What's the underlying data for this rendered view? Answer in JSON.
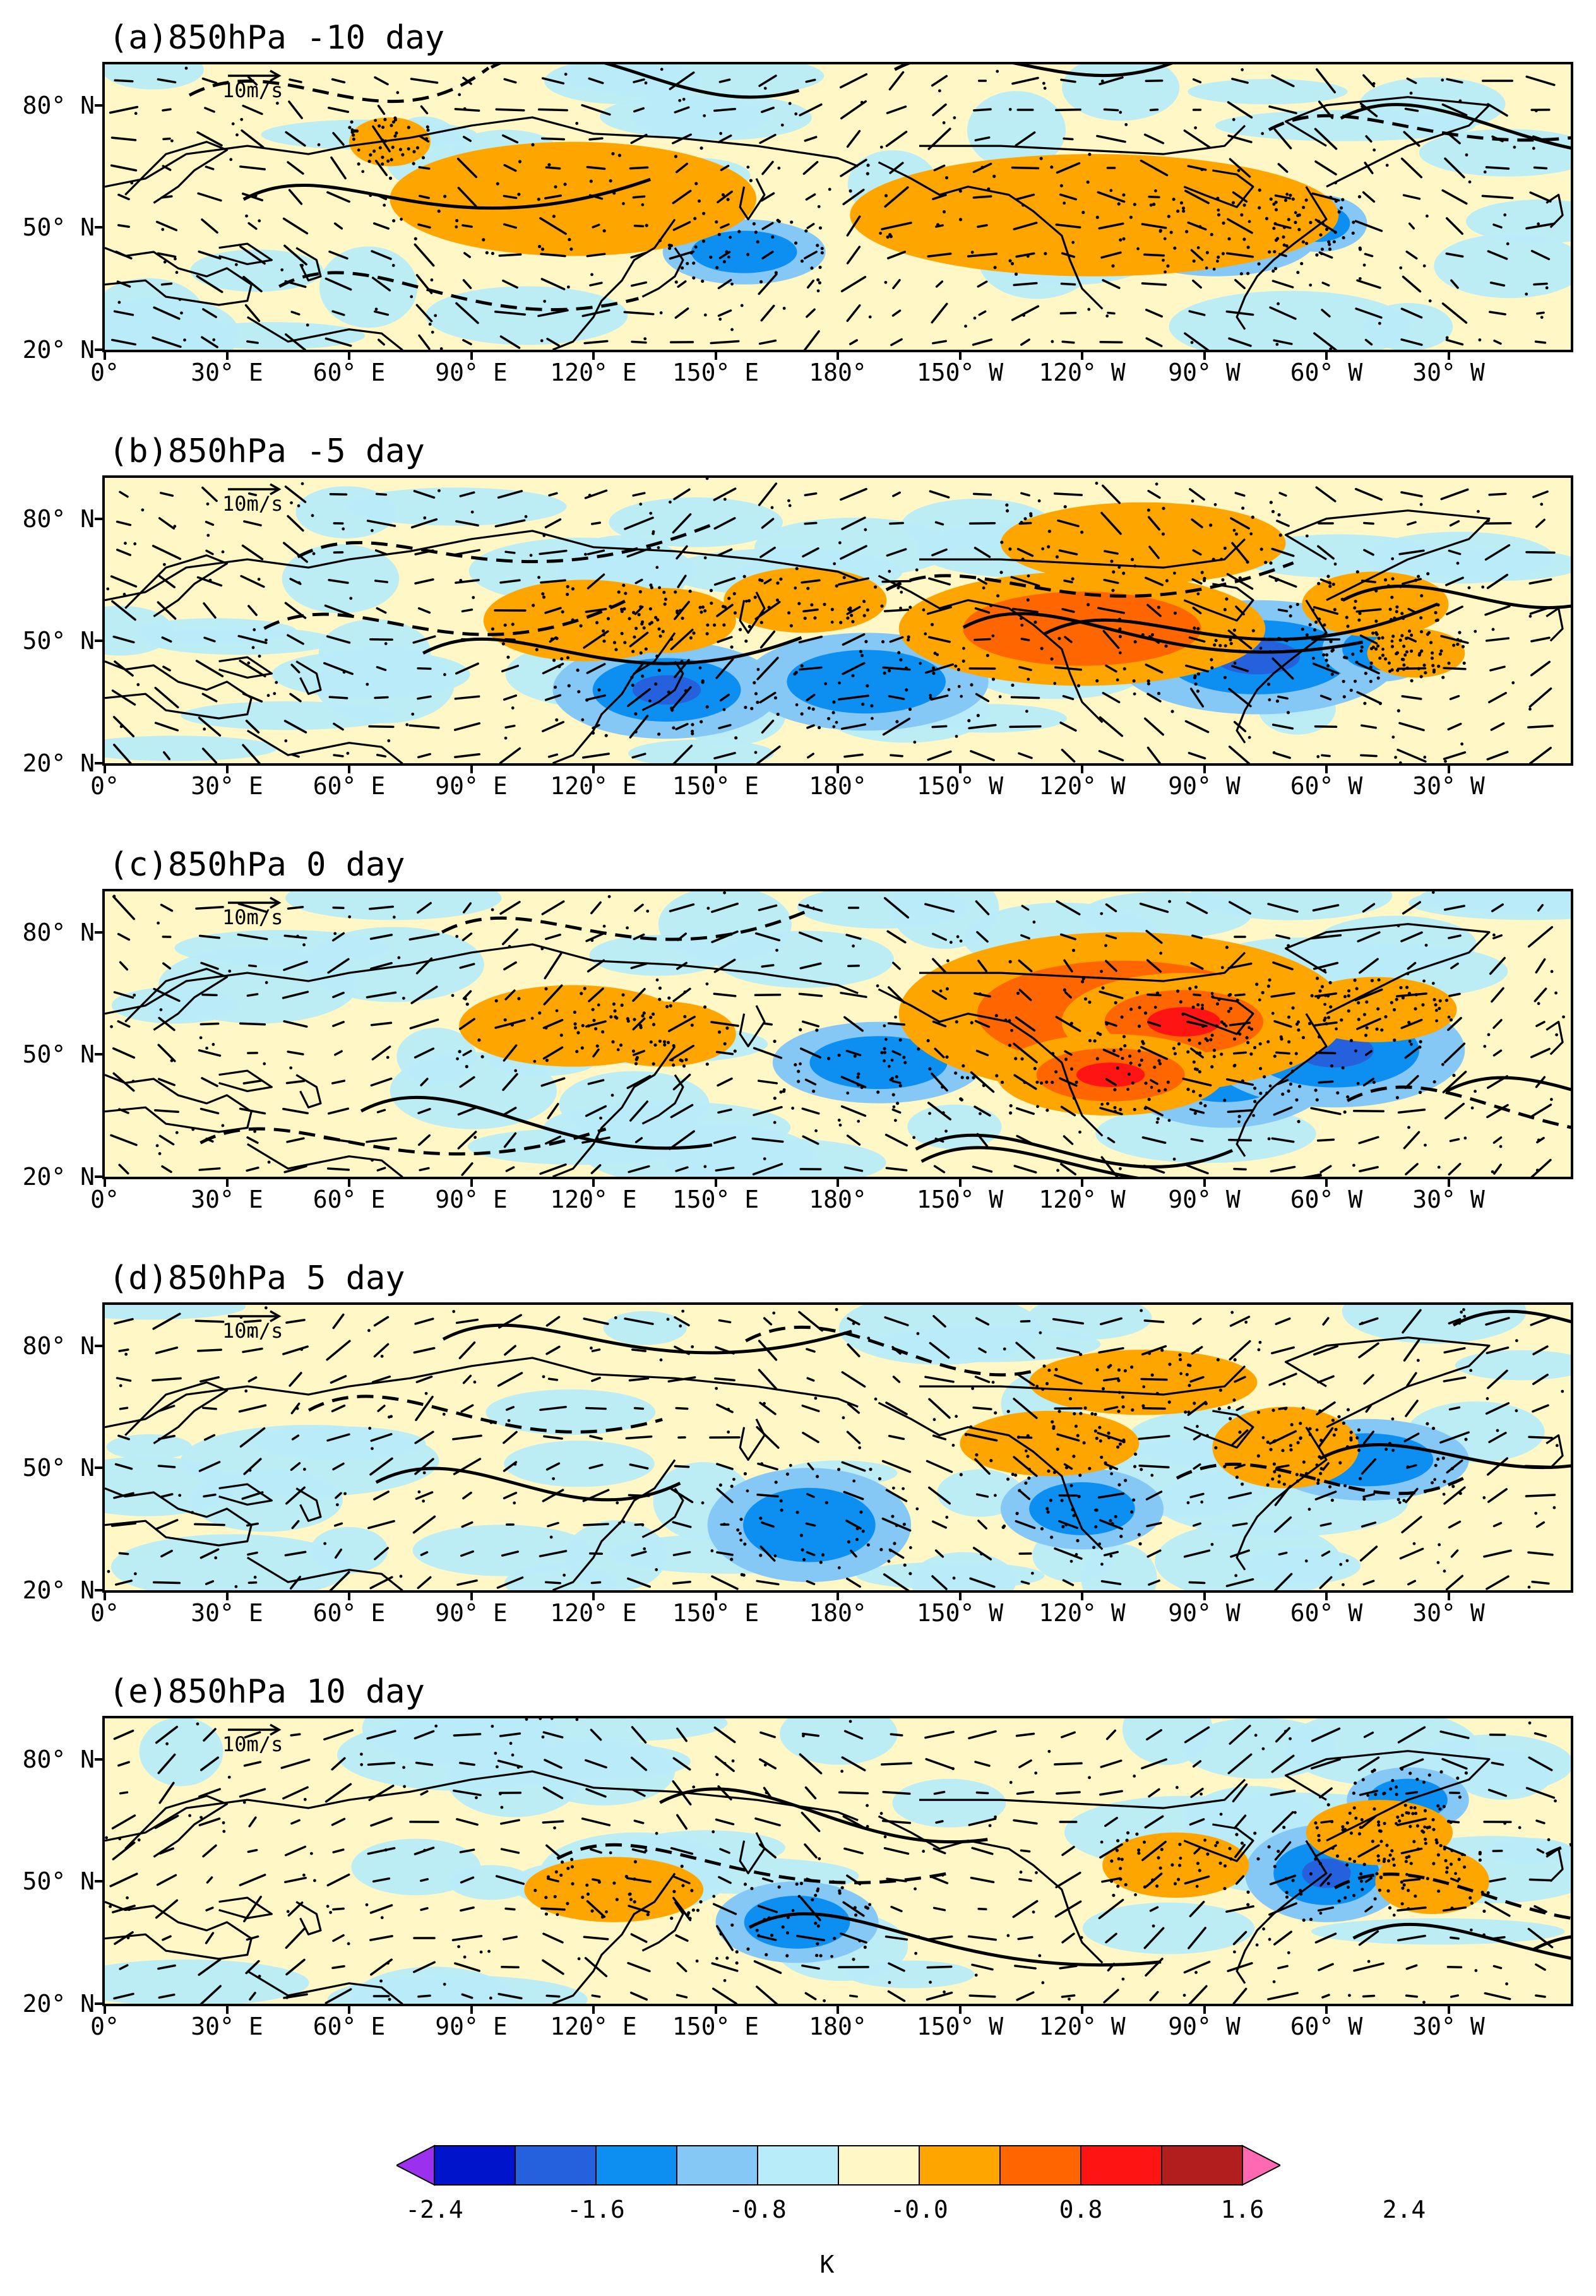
{
  "reference_vector": "10m/s",
  "latitude_labels": [
    "80° N",
    "50° N",
    "20° N"
  ],
  "longitude_labels": [
    "0°",
    "30° E",
    "60° E",
    "90° E",
    "120° E",
    "150° E",
    "180°",
    "150° W",
    "120° W",
    "90° W",
    "60° W",
    "30° W"
  ],
  "panels": [
    {
      "title": "(a)850hPa -10 day",
      "warm": [
        [
          115,
          57,
          45,
          14,
          1
        ],
        [
          243,
          53,
          60,
          15,
          1
        ],
        [
          70,
          71,
          10,
          6,
          1
        ]
      ],
      "cold": [
        [
          157,
          44,
          20,
          8,
          1
        ],
        [
          273,
          48,
          25,
          10,
          1
        ],
        [
          298,
          51,
          12,
          7,
          1
        ]
      ]
    },
    {
      "title": "(b)850hPa -5 day",
      "warm": [
        [
          118,
          55,
          25,
          10,
          1
        ],
        [
          137,
          55,
          18,
          8,
          1
        ],
        [
          172,
          60,
          20,
          8,
          1
        ],
        [
          240,
          53,
          45,
          14,
          2
        ],
        [
          255,
          74,
          35,
          10,
          1
        ],
        [
          312,
          59,
          18,
          8,
          1
        ],
        [
          322,
          47,
          12,
          6,
          1
        ]
      ],
      "cold": [
        [
          138,
          38,
          28,
          12,
          2
        ],
        [
          187,
          40,
          30,
          12,
          1
        ],
        [
          283,
          46,
          35,
          14,
          2
        ],
        [
          313,
          48,
          14,
          8,
          1
        ]
      ]
    },
    {
      "title": "(c)850hPa 0 day",
      "warm": [
        [
          115,
          57,
          28,
          10,
          1
        ],
        [
          137,
          55,
          18,
          8,
          1
        ],
        [
          250,
          60,
          55,
          20,
          2
        ],
        [
          265,
          58,
          30,
          12,
          3
        ],
        [
          247,
          45,
          28,
          10,
          3
        ],
        [
          312,
          61,
          20,
          8,
          1
        ]
      ],
      "cold": [
        [
          275,
          50,
          30,
          18,
          2
        ],
        [
          302,
          51,
          32,
          14,
          3
        ],
        [
          190,
          48,
          26,
          10,
          1
        ]
      ]
    },
    {
      "title": "(d)850hPa 5 day",
      "warm": [
        [
          255,
          71,
          28,
          8,
          1
        ],
        [
          232,
          56,
          22,
          8,
          1
        ],
        [
          290,
          55,
          18,
          10,
          1
        ]
      ],
      "cold": [
        [
          173,
          36,
          25,
          14,
          1
        ],
        [
          310,
          52,
          25,
          10,
          1
        ],
        [
          240,
          40,
          20,
          10,
          1
        ]
      ]
    },
    {
      "title": "(e)850hPa 10 day",
      "warm": [
        [
          125,
          48,
          22,
          8,
          1
        ],
        [
          263,
          54,
          18,
          8,
          1
        ],
        [
          313,
          62,
          18,
          8,
          1
        ],
        [
          326,
          50,
          14,
          8,
          1
        ]
      ],
      "cold": [
        [
          170,
          40,
          20,
          10,
          1
        ],
        [
          300,
          52,
          20,
          12,
          2
        ],
        [
          320,
          70,
          15,
          8,
          1
        ]
      ]
    }
  ],
  "colorbar": {
    "levels": [
      "-2.4",
      "-1.6",
      "-0.8",
      "-0.0",
      "0.8",
      "1.6",
      "2.4"
    ],
    "colors": [
      "#9b30ef",
      "#0014cc",
      "#2561dd",
      "#0c8ff0",
      "#86c8f5",
      "#b8ecf8",
      "#fff7c6",
      "#ffa500",
      "#ff6600",
      "#ff1414",
      "#b21e1e",
      "#ff69b4"
    ],
    "unit": "K"
  }
}
